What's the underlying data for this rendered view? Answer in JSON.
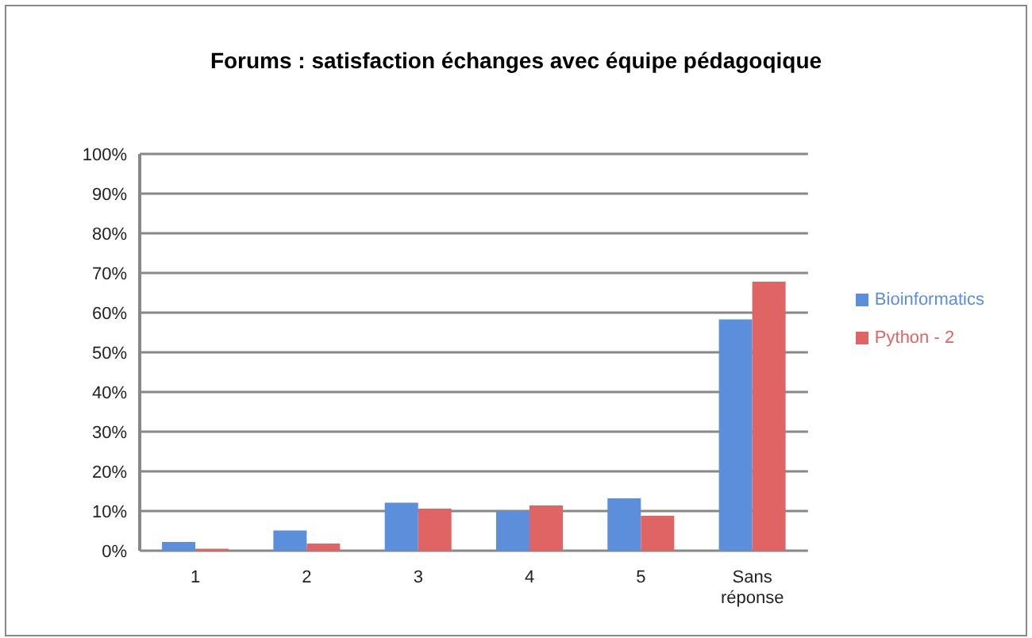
{
  "chart_data": {
    "type": "bar",
    "title": "Forums : satisfaction échanges avec équipe pédagoqique",
    "categories": [
      "1",
      "2",
      "3",
      "4",
      "5",
      "Sans réponse"
    ],
    "series": [
      {
        "name": "Bioinformatics",
        "color": "#5b8fdc",
        "values": [
          2.2,
          5.1,
          12.1,
          10.0,
          13.2,
          58.3
        ]
      },
      {
        "name": "Python - 2",
        "color": "#e06464",
        "values": [
          0.5,
          1.8,
          10.6,
          11.4,
          8.8,
          67.8
        ]
      }
    ],
    "ylim": [
      0,
      100
    ],
    "yticks": [
      {
        "value": 0,
        "label": "0%"
      },
      {
        "value": 10,
        "label": "10%"
      },
      {
        "value": 20,
        "label": "20%"
      },
      {
        "value": 30,
        "label": "30%"
      },
      {
        "value": 40,
        "label": "40%"
      },
      {
        "value": 50,
        "label": "50%"
      },
      {
        "value": 60,
        "label": "60%"
      },
      {
        "value": 70,
        "label": "70%"
      },
      {
        "value": 80,
        "label": "80%"
      },
      {
        "value": 90,
        "label": "90%"
      },
      {
        "value": 100,
        "label": "100%"
      }
    ],
    "grid": "y",
    "legend": "right"
  }
}
